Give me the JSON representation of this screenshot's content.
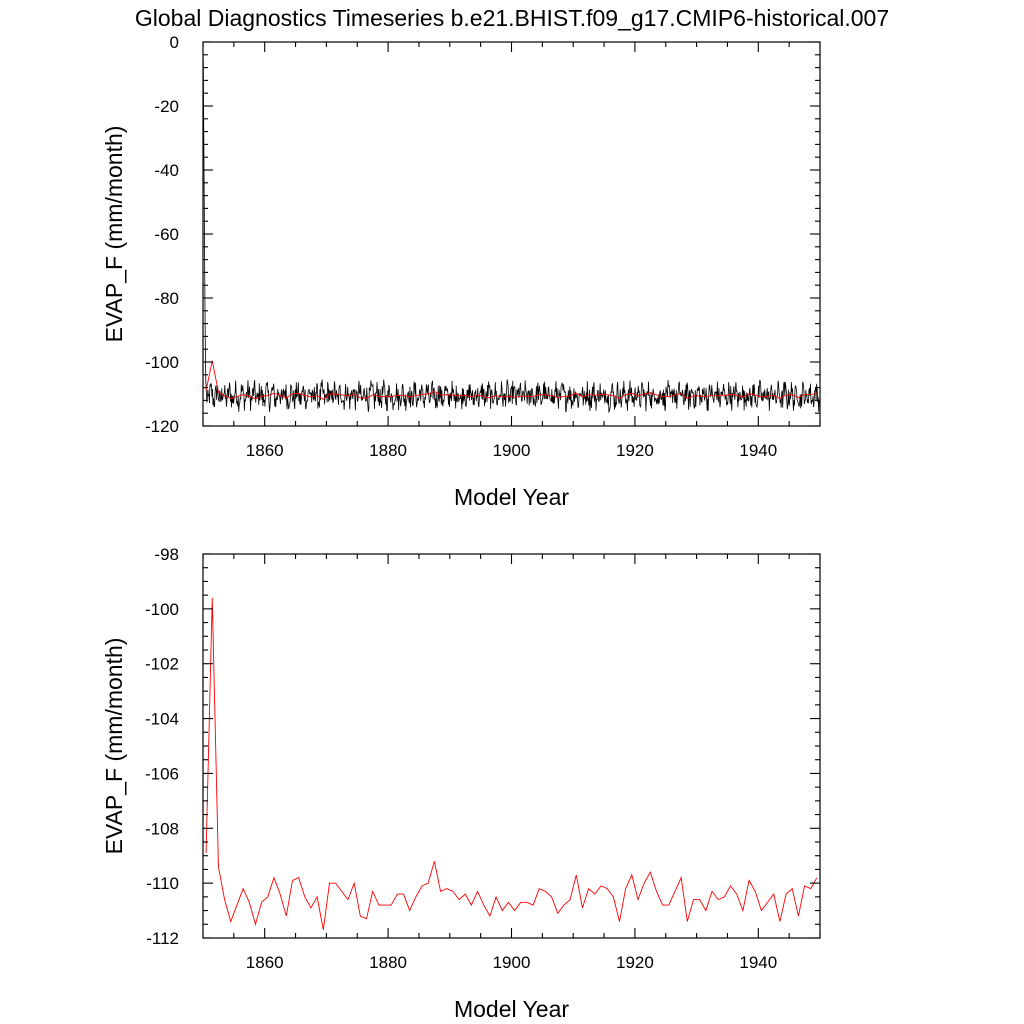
{
  "title": "Global Diagnostics Timeseries b.e21.BHIST.f09_g17.CMIP6-historical.007",
  "colors": {
    "monthly": "#000000",
    "annual": "#ff0000"
  },
  "chart_data": [
    {
      "type": "line",
      "xlabel": "Model Year",
      "ylabel": "EVAP_F (mm/month)",
      "xlim": [
        1850,
        1950
      ],
      "ylim": [
        -120,
        0
      ],
      "xticks": [
        1860,
        1880,
        1900,
        1920,
        1940
      ],
      "yticks": [
        0,
        -20,
        -40,
        -60,
        -80,
        -100,
        -120
      ],
      "x_tick_labels": [
        "1860",
        "1880",
        "1900",
        "1920",
        "1940"
      ],
      "y_tick_labels": [
        "0",
        "-20",
        "-40",
        "-60",
        "-80",
        "-100",
        "-120"
      ],
      "series": [
        {
          "style": "monthly",
          "color": "#000000",
          "x_start": 1850.04,
          "x_step": 0.08333,
          "spinup_values": [
            -5,
            -28,
            -52,
            -75,
            -95,
            -106
          ],
          "base": -110.5,
          "amplitude": 3.5
        },
        {
          "style": "annual",
          "color": "#ff0000",
          "x": [
            1850.5,
            1851.5,
            1852.5,
            1853.5,
            1854.5,
            1855.5,
            1856.5,
            1857.5,
            1858.5,
            1859.5,
            1860.5,
            1861.5,
            1862.5,
            1863.5,
            1864.5,
            1865.5,
            1866.5,
            1867.5,
            1868.5,
            1869.5,
            1870.5,
            1871.5,
            1872.5,
            1873.5,
            1874.5,
            1875.5,
            1876.5,
            1877.5,
            1878.5,
            1879.5,
            1880.5,
            1881.5,
            1882.5,
            1883.5,
            1884.5,
            1885.5,
            1886.5,
            1887.5,
            1888.5,
            1889.5,
            1890.5,
            1891.5,
            1892.5,
            1893.5,
            1894.5,
            1895.5,
            1896.5,
            1897.5,
            1898.5,
            1899.5,
            1900.5,
            1901.5,
            1902.5,
            1903.5,
            1904.5,
            1905.5,
            1906.5,
            1907.5,
            1908.5,
            1909.5,
            1910.5,
            1911.5,
            1912.5,
            1913.5,
            1914.5,
            1915.5,
            1916.5,
            1917.5,
            1918.5,
            1919.5,
            1920.5,
            1921.5,
            1922.5,
            1923.5,
            1924.5,
            1925.5,
            1926.5,
            1927.5,
            1928.5,
            1929.5,
            1930.5,
            1931.5,
            1932.5,
            1933.5,
            1934.5,
            1935.5,
            1936.5,
            1937.5,
            1938.5,
            1939.5,
            1940.5,
            1941.5,
            1942.5,
            1943.5,
            1944.5,
            1945.5,
            1946.5,
            1947.5,
            1948.5,
            1949.5
          ],
          "values": [
            -108.9,
            -99.6,
            -109.4,
            -110.6,
            -111.4,
            -110.8,
            -110.2,
            -110.7,
            -111.5,
            -110.7,
            -110.5,
            -109.8,
            -110.4,
            -111.2,
            -109.9,
            -109.8,
            -110.5,
            -110.9,
            -110.5,
            -111.7,
            -110.0,
            -110.0,
            -110.3,
            -110.6,
            -110.0,
            -111.2,
            -111.3,
            -110.3,
            -110.8,
            -110.8,
            -110.8,
            -110.4,
            -110.4,
            -111.0,
            -110.5,
            -110.1,
            -110.0,
            -109.2,
            -110.3,
            -110.2,
            -110.3,
            -110.6,
            -110.4,
            -110.8,
            -110.3,
            -110.8,
            -111.2,
            -110.5,
            -111.0,
            -110.7,
            -111.0,
            -110.7,
            -110.7,
            -110.8,
            -110.2,
            -110.3,
            -110.5,
            -111.1,
            -110.8,
            -110.6,
            -109.7,
            -110.9,
            -110.2,
            -110.4,
            -110.1,
            -110.2,
            -110.5,
            -111.4,
            -110.2,
            -109.7,
            -110.6,
            -110.0,
            -109.6,
            -110.3,
            -110.8,
            -110.8,
            -110.3,
            -109.8,
            -111.4,
            -110.6,
            -110.6,
            -111.0,
            -110.3,
            -110.6,
            -110.5,
            -110.1,
            -110.4,
            -111.0,
            -109.9,
            -110.3,
            -111.0,
            -110.7,
            -110.4,
            -111.4,
            -110.4,
            -110.2,
            -111.2,
            -110.1,
            -110.2,
            -109.8
          ]
        }
      ]
    },
    {
      "type": "line",
      "xlabel": "Model Year",
      "ylabel": "EVAP_F (mm/month)",
      "xlim": [
        1850,
        1950
      ],
      "ylim": [
        -112,
        -98
      ],
      "xticks": [
        1860,
        1880,
        1900,
        1920,
        1940
      ],
      "yticks": [
        -98,
        -100,
        -102,
        -104,
        -106,
        -108,
        -110,
        -112
      ],
      "x_tick_labels": [
        "1860",
        "1880",
        "1900",
        "1920",
        "1940"
      ],
      "y_tick_labels": [
        "-98",
        "-100",
        "-102",
        "-104",
        "-106",
        "-108",
        "-110",
        "-112"
      ],
      "series": [
        {
          "style": "annual",
          "color": "#ff0000",
          "x": [
            1850.5,
            1851.5,
            1852.5,
            1853.5,
            1854.5,
            1855.5,
            1856.5,
            1857.5,
            1858.5,
            1859.5,
            1860.5,
            1861.5,
            1862.5,
            1863.5,
            1864.5,
            1865.5,
            1866.5,
            1867.5,
            1868.5,
            1869.5,
            1870.5,
            1871.5,
            1872.5,
            1873.5,
            1874.5,
            1875.5,
            1876.5,
            1877.5,
            1878.5,
            1879.5,
            1880.5,
            1881.5,
            1882.5,
            1883.5,
            1884.5,
            1885.5,
            1886.5,
            1887.5,
            1888.5,
            1889.5,
            1890.5,
            1891.5,
            1892.5,
            1893.5,
            1894.5,
            1895.5,
            1896.5,
            1897.5,
            1898.5,
            1899.5,
            1900.5,
            1901.5,
            1902.5,
            1903.5,
            1904.5,
            1905.5,
            1906.5,
            1907.5,
            1908.5,
            1909.5,
            1910.5,
            1911.5,
            1912.5,
            1913.5,
            1914.5,
            1915.5,
            1916.5,
            1917.5,
            1918.5,
            1919.5,
            1920.5,
            1921.5,
            1922.5,
            1923.5,
            1924.5,
            1925.5,
            1926.5,
            1927.5,
            1928.5,
            1929.5,
            1930.5,
            1931.5,
            1932.5,
            1933.5,
            1934.5,
            1935.5,
            1936.5,
            1937.5,
            1938.5,
            1939.5,
            1940.5,
            1941.5,
            1942.5,
            1943.5,
            1944.5,
            1945.5,
            1946.5,
            1947.5,
            1948.5,
            1949.5
          ],
          "values": [
            -108.9,
            -99.6,
            -109.4,
            -110.6,
            -111.4,
            -110.8,
            -110.2,
            -110.7,
            -111.5,
            -110.7,
            -110.5,
            -109.8,
            -110.4,
            -111.2,
            -109.9,
            -109.8,
            -110.5,
            -110.9,
            -110.5,
            -111.7,
            -110.0,
            -110.0,
            -110.3,
            -110.6,
            -110.0,
            -111.2,
            -111.3,
            -110.3,
            -110.8,
            -110.8,
            -110.8,
            -110.4,
            -110.4,
            -111.0,
            -110.5,
            -110.1,
            -110.0,
            -109.2,
            -110.3,
            -110.2,
            -110.3,
            -110.6,
            -110.4,
            -110.8,
            -110.3,
            -110.8,
            -111.2,
            -110.5,
            -111.0,
            -110.7,
            -111.0,
            -110.7,
            -110.7,
            -110.8,
            -110.2,
            -110.3,
            -110.5,
            -111.1,
            -110.8,
            -110.6,
            -109.7,
            -110.9,
            -110.2,
            -110.4,
            -110.1,
            -110.2,
            -110.5,
            -111.4,
            -110.2,
            -109.7,
            -110.6,
            -110.0,
            -109.6,
            -110.3,
            -110.8,
            -110.8,
            -110.3,
            -109.8,
            -111.4,
            -110.6,
            -110.6,
            -111.0,
            -110.3,
            -110.6,
            -110.5,
            -110.1,
            -110.4,
            -111.0,
            -109.9,
            -110.3,
            -111.0,
            -110.7,
            -110.4,
            -111.4,
            -110.4,
            -110.2,
            -111.2,
            -110.1,
            -110.2,
            -109.8
          ]
        }
      ]
    }
  ]
}
